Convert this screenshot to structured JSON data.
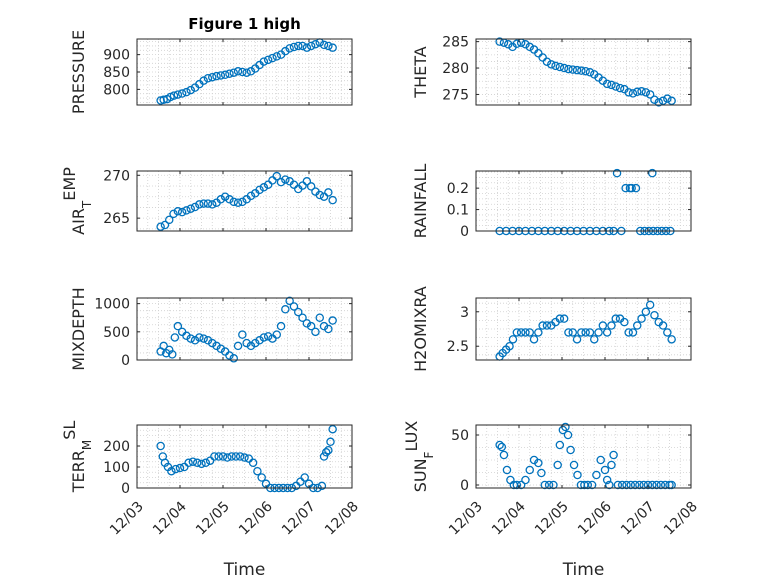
{
  "figure": {
    "title": "Figure 1 high",
    "marker_color": "#0072BD"
  },
  "chart_data": [
    {
      "type": "scatter",
      "id": "pressure",
      "title": "Figure 1 high",
      "ylabel": "PRESSURE",
      "ylim": [
        755,
        945
      ],
      "yticks": [
        800,
        850,
        900
      ],
      "ytick_labels": [
        "800",
        "850",
        "900"
      ],
      "xlim": [
        0,
        5
      ],
      "show_xticklabels": false,
      "grid": true,
      "x": [
        0.55,
        0.62,
        0.7,
        0.78,
        0.86,
        0.95,
        1.05,
        1.15,
        1.25,
        1.35,
        1.45,
        1.55,
        1.65,
        1.75,
        1.85,
        1.95,
        2.05,
        2.15,
        2.25,
        2.35,
        2.45,
        2.55,
        2.65,
        2.75,
        2.85,
        2.95,
        3.05,
        3.15,
        3.25,
        3.35,
        3.45,
        3.55,
        3.65,
        3.75,
        3.85,
        3.95,
        4.05,
        4.15,
        4.25,
        4.35,
        4.45,
        4.55
      ],
      "y": [
        768,
        770,
        772,
        778,
        782,
        785,
        788,
        792,
        798,
        805,
        815,
        825,
        832,
        835,
        838,
        840,
        842,
        845,
        848,
        852,
        850,
        848,
        852,
        860,
        870,
        880,
        885,
        890,
        895,
        900,
        910,
        918,
        922,
        925,
        925,
        920,
        925,
        930,
        935,
        928,
        925,
        920
      ]
    },
    {
      "type": "scatter",
      "id": "theta",
      "ylabel": "THETA",
      "ylim": [
        273,
        285.5
      ],
      "yticks": [
        275,
        280,
        285
      ],
      "ytick_labels": [
        "275",
        "280",
        "285"
      ],
      "xlim": [
        0,
        5
      ],
      "show_xticklabels": false,
      "grid": true,
      "x": [
        0.55,
        0.65,
        0.75,
        0.85,
        0.95,
        1.05,
        1.15,
        1.25,
        1.35,
        1.45,
        1.55,
        1.65,
        1.75,
        1.85,
        1.95,
        2.05,
        2.15,
        2.25,
        2.35,
        2.45,
        2.55,
        2.65,
        2.75,
        2.85,
        2.95,
        3.05,
        3.15,
        3.25,
        3.35,
        3.45,
        3.55,
        3.65,
        3.75,
        3.85,
        3.95,
        4.05,
        4.15,
        4.25,
        4.35,
        4.45,
        4.55
      ],
      "y": [
        285,
        284.8,
        284.5,
        284,
        284.6,
        284.8,
        284.5,
        284,
        283.5,
        282.8,
        282,
        281.2,
        280.7,
        280.4,
        280.2,
        280,
        279.8,
        279.7,
        279.6,
        279.5,
        279.4,
        279.2,
        278.8,
        278.2,
        277.6,
        277,
        276.8,
        276.5,
        276.2,
        276,
        275.4,
        275.2,
        275.5,
        275.6,
        275.4,
        275,
        274,
        273.5,
        273.8,
        274.2,
        273.8
      ]
    },
    {
      "type": "scatter",
      "id": "air-temp",
      "ylabel": "AIR_TEMP",
      "ylim": [
        263.5,
        270.5
      ],
      "yticks": [
        265,
        270
      ],
      "ytick_labels": [
        "265",
        "270"
      ],
      "xlim": [
        0,
        5
      ],
      "show_xticklabels": false,
      "grid": true,
      "x": [
        0.55,
        0.65,
        0.75,
        0.85,
        0.95,
        1.05,
        1.15,
        1.25,
        1.35,
        1.45,
        1.55,
        1.65,
        1.75,
        1.85,
        1.95,
        2.05,
        2.15,
        2.25,
        2.35,
        2.45,
        2.55,
        2.65,
        2.75,
        2.85,
        2.95,
        3.05,
        3.15,
        3.25,
        3.35,
        3.45,
        3.55,
        3.65,
        3.75,
        3.85,
        3.95,
        4.05,
        4.15,
        4.25,
        4.35,
        4.45,
        4.55
      ],
      "y": [
        264,
        264.2,
        264.8,
        265.5,
        265.8,
        265.7,
        265.9,
        266.1,
        266.3,
        266.6,
        266.7,
        266.7,
        266.6,
        266.8,
        267.2,
        267.5,
        267.2,
        266.9,
        266.8,
        266.9,
        267.2,
        267.6,
        267.9,
        268.3,
        268.6,
        268.9,
        269.4,
        269.9,
        269.2,
        269.5,
        269.3,
        268.9,
        268.4,
        268.8,
        269.3,
        268.7,
        268.1,
        267.7,
        267.5,
        268,
        267.1
      ]
    },
    {
      "type": "scatter",
      "id": "rainfall",
      "ylabel": "RAINFALL",
      "ylim": [
        0,
        0.28
      ],
      "yticks": [
        0,
        0.1,
        0.2
      ],
      "ytick_labels": [
        "0",
        "0.1",
        "0.2"
      ],
      "xlim": [
        0,
        5
      ],
      "show_xticklabels": false,
      "grid": true,
      "x": [
        0.55,
        0.7,
        0.85,
        1.0,
        1.15,
        1.3,
        1.45,
        1.6,
        1.75,
        1.9,
        2.05,
        2.2,
        2.35,
        2.5,
        2.65,
        2.8,
        2.95,
        3.1,
        3.2,
        3.28,
        3.38,
        3.48,
        3.58,
        3.62,
        3.72,
        3.82,
        3.92,
        4.02,
        4.12,
        4.22,
        4.32,
        4.42,
        4.52,
        4.1
      ],
      "y": [
        0,
        0,
        0,
        0,
        0,
        0,
        0,
        0,
        0,
        0,
        0,
        0,
        0,
        0,
        0,
        0,
        0,
        0,
        0,
        0.27,
        0,
        0.2,
        0.2,
        0.2,
        0.2,
        0,
        0,
        0,
        0,
        0,
        0,
        0,
        0,
        0.27
      ]
    },
    {
      "type": "scatter",
      "id": "mixdepth",
      "ylabel": "MIXDEPTH",
      "ylim": [
        0,
        1100
      ],
      "yticks": [
        0,
        500,
        1000
      ],
      "ytick_labels": [
        "0",
        "500",
        "1000"
      ],
      "xlim": [
        0,
        5
      ],
      "show_xticklabels": false,
      "grid": true,
      "x": [
        0.55,
        0.62,
        0.68,
        0.75,
        0.82,
        0.88,
        0.95,
        1.05,
        1.15,
        1.25,
        1.35,
        1.45,
        1.55,
        1.65,
        1.75,
        1.85,
        1.95,
        2.05,
        2.15,
        2.25,
        2.35,
        2.45,
        2.55,
        2.65,
        2.75,
        2.85,
        2.95,
        3.05,
        3.15,
        3.25,
        3.35,
        3.45,
        3.55,
        3.65,
        3.75,
        3.85,
        3.95,
        4.05,
        4.15,
        4.25,
        4.35,
        4.45,
        4.55
      ],
      "y": [
        150,
        250,
        120,
        180,
        100,
        400,
        600,
        500,
        430,
        380,
        350,
        400,
        380,
        350,
        300,
        250,
        200,
        150,
        80,
        30,
        250,
        450,
        300,
        250,
        300,
        350,
        400,
        420,
        380,
        450,
        600,
        900,
        1050,
        950,
        850,
        750,
        650,
        600,
        500,
        750,
        600,
        550,
        700
      ]
    },
    {
      "type": "scatter",
      "id": "h2omixra",
      "ylabel": "H2OMIXRA",
      "ylim": [
        2.3,
        3.2
      ],
      "yticks": [
        2.5,
        3
      ],
      "ytick_labels": [
        "2.5",
        "3"
      ],
      "xlim": [
        0,
        5
      ],
      "show_xticklabels": false,
      "grid": true,
      "x": [
        0.55,
        0.62,
        0.7,
        0.78,
        0.86,
        0.95,
        1.05,
        1.15,
        1.25,
        1.35,
        1.45,
        1.55,
        1.65,
        1.75,
        1.85,
        1.95,
        2.05,
        2.15,
        2.25,
        2.35,
        2.45,
        2.55,
        2.65,
        2.75,
        2.85,
        2.95,
        3.05,
        3.15,
        3.25,
        3.35,
        3.45,
        3.55,
        3.65,
        3.75,
        3.85,
        3.95,
        4.05,
        4.15,
        4.25,
        4.35,
        4.45,
        4.55
      ],
      "y": [
        2.35,
        2.4,
        2.45,
        2.5,
        2.6,
        2.7,
        2.7,
        2.7,
        2.7,
        2.6,
        2.7,
        2.8,
        2.8,
        2.8,
        2.85,
        2.9,
        2.9,
        2.7,
        2.7,
        2.6,
        2.7,
        2.7,
        2.7,
        2.6,
        2.7,
        2.8,
        2.7,
        2.8,
        2.9,
        2.9,
        2.85,
        2.7,
        2.7,
        2.8,
        2.9,
        3.0,
        3.1,
        2.95,
        2.85,
        2.8,
        2.7,
        2.6
      ]
    },
    {
      "type": "scatter",
      "id": "terr-msl",
      "ylabel": "TERR_MSL",
      "ylim": [
        0,
        300
      ],
      "yticks": [
        0,
        100,
        200
      ],
      "ytick_labels": [
        "0",
        "100",
        "200"
      ],
      "xlim": [
        0,
        5
      ],
      "xticks": [
        0,
        1,
        2,
        3,
        4,
        5
      ],
      "xtick_labels": [
        "12/03",
        "12/04",
        "12/05",
        "12/06",
        "12/07",
        "12/08"
      ],
      "xlabel": "Time",
      "grid": true,
      "x": [
        0.55,
        0.6,
        0.65,
        0.72,
        0.8,
        0.9,
        1.0,
        1.1,
        1.2,
        1.3,
        1.4,
        1.5,
        1.6,
        1.7,
        1.8,
        1.9,
        2.0,
        2.1,
        2.2,
        2.3,
        2.4,
        2.5,
        2.6,
        2.7,
        2.8,
        2.9,
        3.0,
        3.1,
        3.2,
        3.3,
        3.4,
        3.5,
        3.6,
        3.7,
        3.8,
        3.9,
        4.0,
        4.1,
        4.2,
        4.3,
        4.35,
        4.4,
        4.45,
        4.5,
        4.55
      ],
      "y": [
        200,
        150,
        120,
        100,
        80,
        90,
        95,
        100,
        120,
        125,
        120,
        115,
        120,
        130,
        150,
        150,
        150,
        145,
        150,
        150,
        150,
        145,
        140,
        120,
        80,
        50,
        20,
        0,
        0,
        0,
        0,
        0,
        0,
        10,
        30,
        50,
        20,
        0,
        0,
        10,
        150,
        170,
        180,
        220,
        280
      ]
    },
    {
      "type": "scatter",
      "id": "sun-flux",
      "ylabel": "SUN_FLUX",
      "ylim": [
        -3,
        60
      ],
      "yticks": [
        0,
        50
      ],
      "ytick_labels": [
        "0",
        "50"
      ],
      "xlim": [
        0,
        5
      ],
      "xticks": [
        0,
        1,
        2,
        3,
        4,
        5
      ],
      "xtick_labels": [
        "12/03",
        "12/04",
        "12/05",
        "12/06",
        "12/07",
        "12/08"
      ],
      "xlabel": "Time",
      "grid": true,
      "x": [
        0.55,
        0.6,
        0.65,
        0.72,
        0.8,
        0.88,
        0.95,
        1.05,
        1.15,
        1.25,
        1.35,
        1.45,
        1.52,
        1.6,
        1.7,
        1.8,
        1.9,
        1.95,
        2.02,
        2.08,
        2.14,
        2.2,
        2.28,
        2.36,
        2.44,
        2.52,
        2.6,
        2.7,
        2.8,
        2.9,
        3.0,
        3.05,
        3.1,
        3.15,
        3.2,
        3.3,
        3.4,
        3.5,
        3.6,
        3.7,
        3.8,
        3.9,
        4.0,
        4.1,
        4.2,
        4.3,
        4.4,
        4.5,
        4.55
      ],
      "y": [
        40,
        38,
        30,
        15,
        5,
        0,
        0,
        0,
        5,
        15,
        25,
        22,
        12,
        0,
        0,
        0,
        20,
        40,
        55,
        58,
        50,
        35,
        20,
        10,
        0,
        0,
        0,
        0,
        10,
        25,
        15,
        5,
        0,
        20,
        30,
        0,
        0,
        0,
        0,
        0,
        0,
        0,
        0,
        0,
        0,
        0,
        0,
        0,
        0
      ]
    }
  ]
}
